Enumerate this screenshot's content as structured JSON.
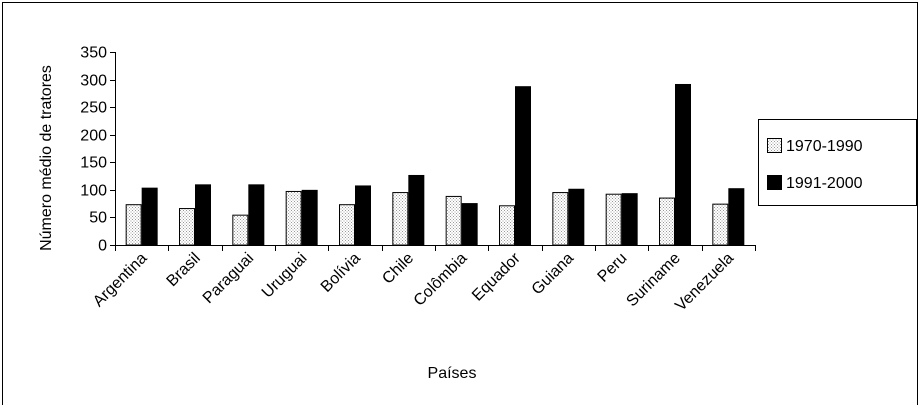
{
  "chart_data": {
    "type": "bar",
    "categories": [
      "Argentina",
      "Brasil",
      "Paraguai",
      "Uruguai",
      "Bolívia",
      "Chile",
      "Colômbia",
      "Equador",
      "Guiana",
      "Peru",
      "Suriname",
      "Venezuela"
    ],
    "series": [
      {
        "name": "1970-1990",
        "values": [
          74,
          67,
          55,
          98,
          74,
          96,
          89,
          72,
          96,
          93,
          86,
          75
        ],
        "fill": "#e6e6e6"
      },
      {
        "name": "1991-2000",
        "values": [
          104,
          110,
          110,
          100,
          108,
          127,
          76,
          288,
          102,
          94,
          292,
          103
        ],
        "fill": "#000000"
      }
    ],
    "xlabel": "Países",
    "ylabel": "Número médio de tratores",
    "ylim": [
      0,
      350
    ],
    "yticks": [
      "0",
      "50",
      "100",
      "150",
      "200",
      "250",
      "300",
      "350"
    ],
    "grid": false,
    "legend": "right"
  }
}
